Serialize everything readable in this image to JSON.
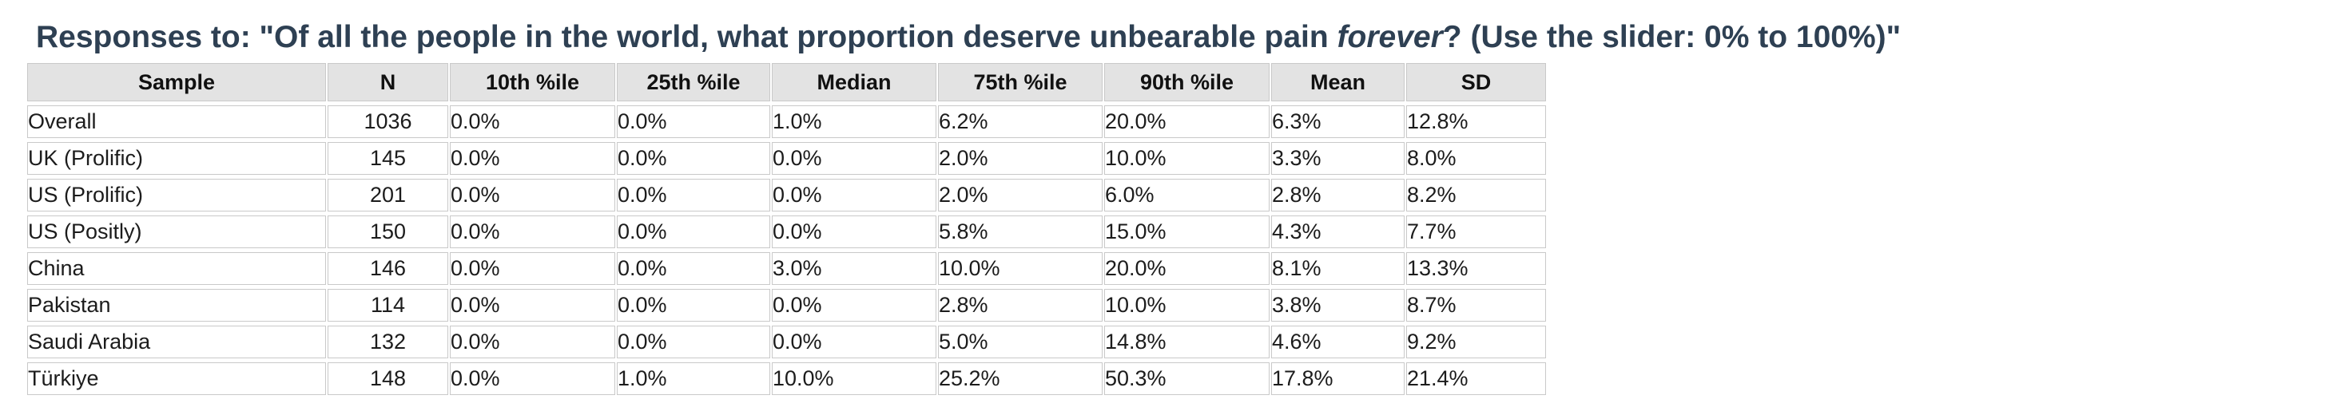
{
  "title": {
    "prefix": "Responses to: \"Of all the people in the world, what proportion deserve unbearable pain ",
    "italic": "forever",
    "suffix": "? (Use the slider: 0% to 100%)\""
  },
  "table": {
    "columns": [
      "Sample",
      "N",
      "10th %ile",
      "25th %ile",
      "Median",
      "75th %ile",
      "90th %ile",
      "Mean",
      "SD"
    ],
    "rows": [
      [
        "Overall",
        "1036",
        "0.0%",
        "0.0%",
        "1.0%",
        "6.2%",
        "20.0%",
        "6.3%",
        "12.8%"
      ],
      [
        "UK (Prolific)",
        "145",
        "0.0%",
        "0.0%",
        "0.0%",
        "2.0%",
        "10.0%",
        "3.3%",
        "8.0%"
      ],
      [
        "US (Prolific)",
        "201",
        "0.0%",
        "0.0%",
        "0.0%",
        "2.0%",
        "6.0%",
        "2.8%",
        "8.2%"
      ],
      [
        "US (Positly)",
        "150",
        "0.0%",
        "0.0%",
        "0.0%",
        "5.8%",
        "15.0%",
        "4.3%",
        "7.7%"
      ],
      [
        "China",
        "146",
        "0.0%",
        "0.0%",
        "3.0%",
        "10.0%",
        "20.0%",
        "8.1%",
        "13.3%"
      ],
      [
        "Pakistan",
        "114",
        "0.0%",
        "0.0%",
        "0.0%",
        "2.8%",
        "10.0%",
        "3.8%",
        "8.7%"
      ],
      [
        "Saudi Arabia",
        "132",
        "0.0%",
        "0.0%",
        "0.0%",
        "5.0%",
        "14.8%",
        "4.6%",
        "9.2%"
      ],
      [
        "Türkiye",
        "148",
        "0.0%",
        "1.0%",
        "10.0%",
        "25.2%",
        "50.3%",
        "17.8%",
        "21.4%"
      ]
    ]
  },
  "chart_data": {
    "type": "table",
    "title": "Responses to: \"Of all the people in the world, what proportion deserve unbearable pain forever? (Use the slider: 0% to 100%)\"",
    "columns": [
      "Sample",
      "N",
      "10th %ile",
      "25th %ile",
      "Median",
      "75th %ile",
      "90th %ile",
      "Mean",
      "SD"
    ],
    "value_unit": "%",
    "rows": [
      {
        "sample": "Overall",
        "n": 1036,
        "p10": 0.0,
        "p25": 0.0,
        "median": 1.0,
        "p75": 6.2,
        "p90": 20.0,
        "mean": 6.3,
        "sd": 12.8
      },
      {
        "sample": "UK (Prolific)",
        "n": 145,
        "p10": 0.0,
        "p25": 0.0,
        "median": 0.0,
        "p75": 2.0,
        "p90": 10.0,
        "mean": 3.3,
        "sd": 8.0
      },
      {
        "sample": "US (Prolific)",
        "n": 201,
        "p10": 0.0,
        "p25": 0.0,
        "median": 0.0,
        "p75": 2.0,
        "p90": 6.0,
        "mean": 2.8,
        "sd": 8.2
      },
      {
        "sample": "US (Positly)",
        "n": 150,
        "p10": 0.0,
        "p25": 0.0,
        "median": 0.0,
        "p75": 5.8,
        "p90": 15.0,
        "mean": 4.3,
        "sd": 7.7
      },
      {
        "sample": "China",
        "n": 146,
        "p10": 0.0,
        "p25": 0.0,
        "median": 3.0,
        "p75": 10.0,
        "p90": 20.0,
        "mean": 8.1,
        "sd": 13.3
      },
      {
        "sample": "Pakistan",
        "n": 114,
        "p10": 0.0,
        "p25": 0.0,
        "median": 0.0,
        "p75": 2.8,
        "p90": 10.0,
        "mean": 3.8,
        "sd": 8.7
      },
      {
        "sample": "Saudi Arabia",
        "n": 132,
        "p10": 0.0,
        "p25": 0.0,
        "median": 0.0,
        "p75": 5.0,
        "p90": 14.8,
        "mean": 4.6,
        "sd": 9.2
      },
      {
        "sample": "Türkiye",
        "n": 148,
        "p10": 0.0,
        "p25": 1.0,
        "median": 10.0,
        "p75": 25.2,
        "p90": 50.3,
        "mean": 17.8,
        "sd": 21.4
      }
    ]
  },
  "colors": {
    "title_text": "#2e4053",
    "header_bg": "#e3e3e3",
    "cell_border": "#c9c9c9",
    "body_text": "#1c1c1c",
    "page_bg": "#ffffff"
  }
}
